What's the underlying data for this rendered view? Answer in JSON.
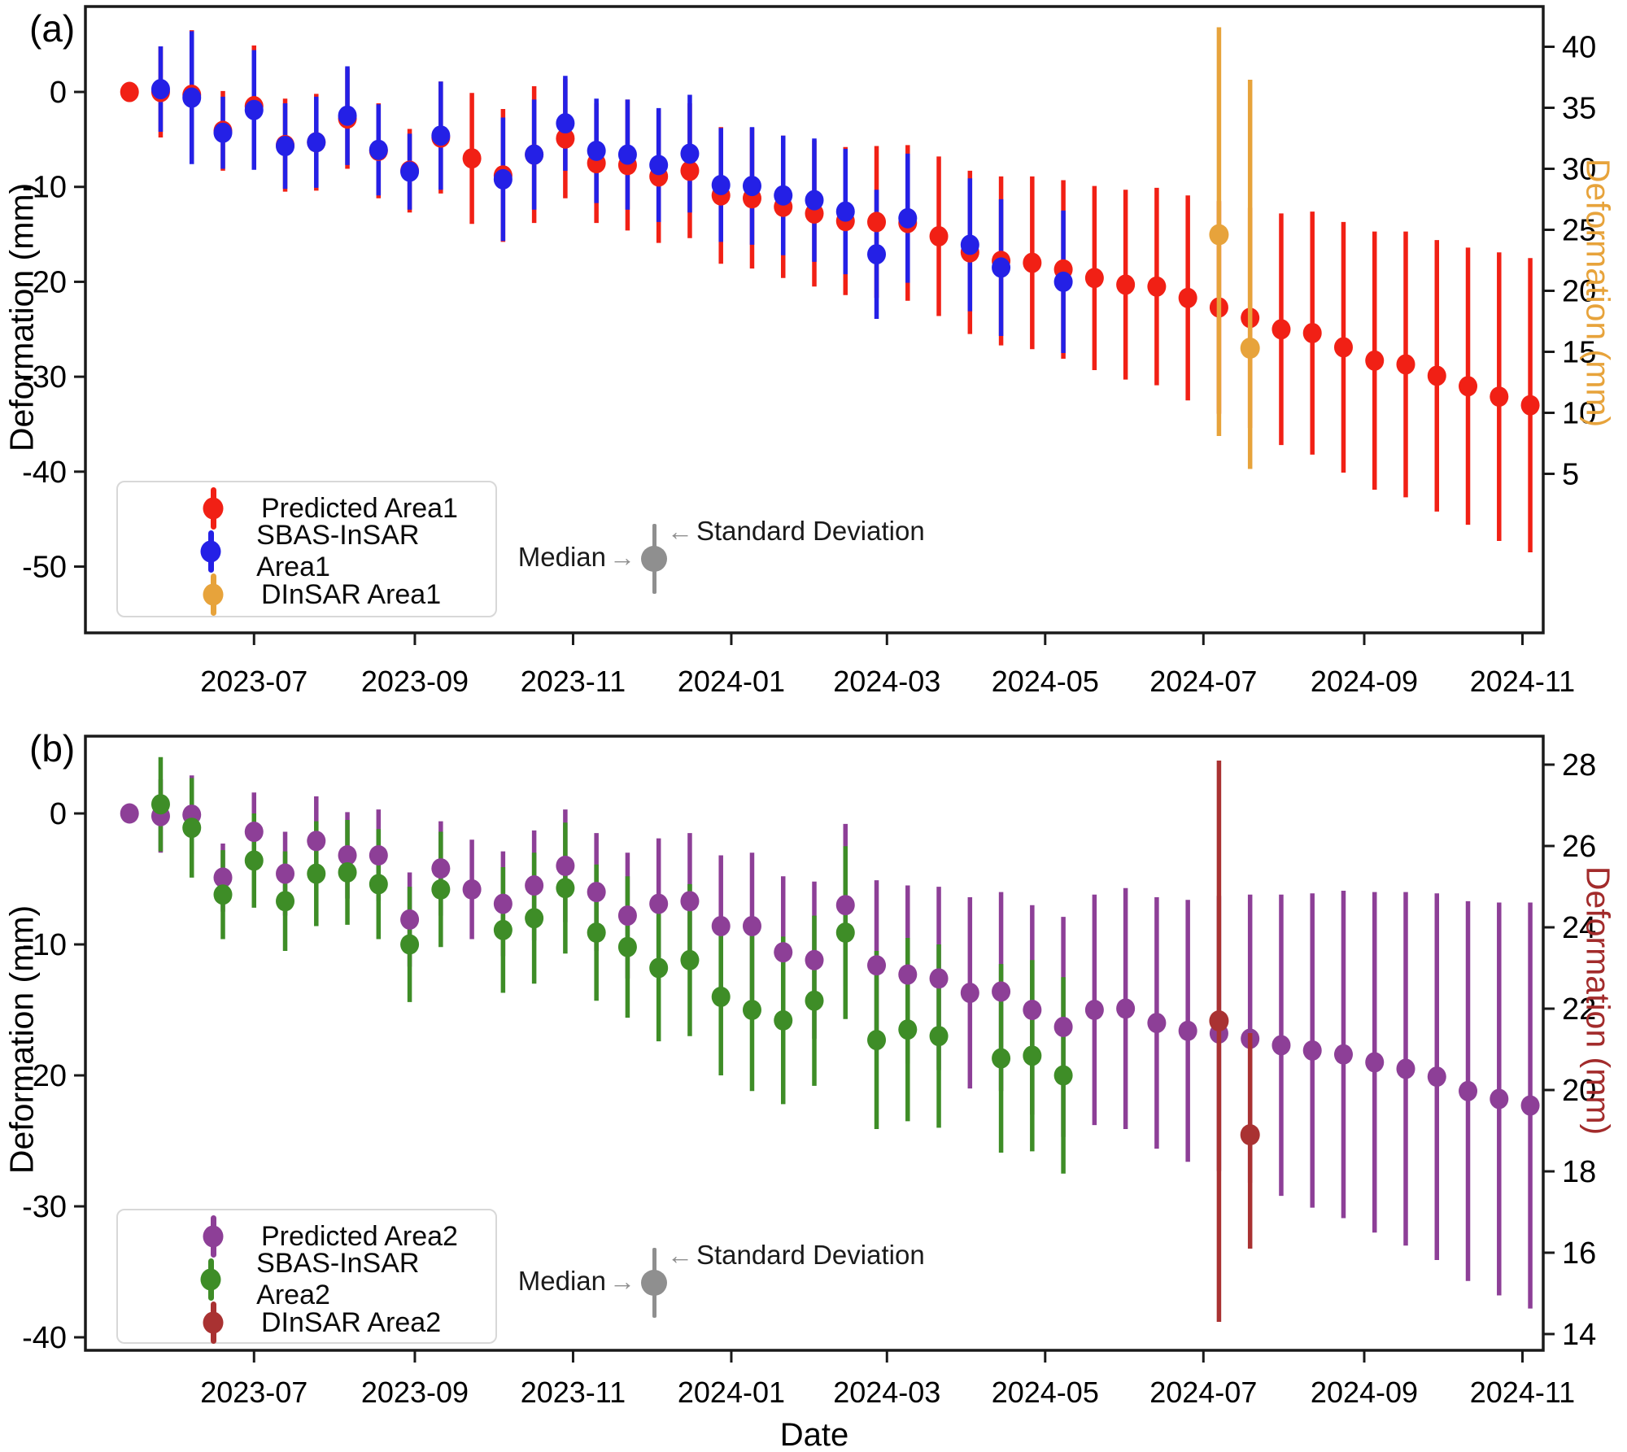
{
  "annotation": {
    "median": "Median",
    "sd": "Standard Deviation",
    "arrow_right": "→",
    "arrow_left": "←"
  },
  "x_axis": {
    "xlabel": "Date",
    "tick_labels": [
      "2023-07",
      "2023-09",
      "2023-11",
      "2024-01",
      "2024-03",
      "2024-05",
      "2024-07",
      "2024-09",
      "2024-11"
    ]
  },
  "panel_a": {
    "letter": "(a)",
    "ylabel_left": "Deformation (mm)",
    "ylabel_right": "Deformation (mm)",
    "ylabel_right_color": "#e7a33b",
    "legend": {
      "items": [
        {
          "label": "Predicted Area1",
          "color": "#f12015"
        },
        {
          "label": "SBAS-InSAR Area1",
          "color": "#2420e6"
        },
        {
          "label": "DInSAR Area1",
          "color": "#e7a33b"
        }
      ]
    }
  },
  "panel_b": {
    "letter": "(b)",
    "ylabel_left": "Deformation (mm)",
    "ylabel_right": "Deformation (mm)",
    "ylabel_right_color": "#a22b2b",
    "legend": {
      "items": [
        {
          "label": "Predicted Area2",
          "color": "#8d3f97"
        },
        {
          "label": "SBAS-InSAR Area2",
          "color": "#3e8d27"
        },
        {
          "label": "DInSAR Area2",
          "color": "#a93232"
        }
      ]
    }
  },
  "chart_data": [
    {
      "panel": "a",
      "type": "scatter",
      "title": "",
      "xlabel": "",
      "ylabel_left": "Deformation (mm)",
      "ylabel_right": "Deformation (mm)",
      "left_ticks": [
        0,
        -10,
        -20,
        -30,
        -40,
        -50
      ],
      "right_ticks": [
        40,
        35,
        30,
        25,
        20,
        15,
        10,
        5
      ],
      "left_ylim": [
        -57,
        9
      ],
      "right_ylim": [
        -8.3,
        43.3
      ],
      "grid": false,
      "legend_position": "lower-left",
      "dates": [
        "2023-05-14",
        "2023-05-26",
        "2023-06-07",
        "2023-06-19",
        "2023-07-01",
        "2023-07-13",
        "2023-07-25",
        "2023-08-06",
        "2023-08-18",
        "2023-08-30",
        "2023-09-11",
        "2023-09-23",
        "2023-10-05",
        "2023-10-17",
        "2023-10-29",
        "2023-11-10",
        "2023-11-22",
        "2023-12-04",
        "2023-12-16",
        "2023-12-28",
        "2024-01-09",
        "2024-01-21",
        "2024-02-02",
        "2024-02-14",
        "2024-02-26",
        "2024-03-09",
        "2024-03-21",
        "2024-04-02",
        "2024-04-14",
        "2024-04-26",
        "2024-05-08",
        "2024-05-20",
        "2024-06-01",
        "2024-06-13",
        "2024-06-25",
        "2024-07-07",
        "2024-07-19",
        "2024-07-31",
        "2024-08-12",
        "2024-08-24",
        "2024-09-05",
        "2024-09-17",
        "2024-09-29",
        "2024-10-11",
        "2024-10-23",
        "2024-11-04"
      ],
      "series": [
        {
          "name": "Predicted Area1",
          "color": "#f12015",
          "axis": "left",
          "values": [
            0,
            0,
            -0.3,
            -4.1,
            -1.5,
            -5.6,
            -5.3,
            -2.8,
            -6.2,
            -8.3,
            -4.8,
            -7.0,
            -8.8,
            -6.6,
            -4.9,
            -7.5,
            -7.7,
            -8.9,
            -8.3,
            -10.9,
            -11.2,
            -12.1,
            -12.8,
            -13.6,
            -13.7,
            -13.8,
            -15.2,
            -16.9,
            -17.8,
            -18.0,
            -18.7,
            -19.6,
            -20.3,
            -20.5,
            -21.7,
            -22.7,
            -23.8,
            -25.0,
            -25.4,
            -26.9,
            -28.3,
            -28.7,
            -29.9,
            -31.0,
            -32.1,
            -33.0
          ],
          "std": [
            0,
            4.8,
            6.8,
            4.2,
            6.4,
            4.9,
            5.1,
            5.3,
            5.0,
            4.4,
            5.9,
            6.9,
            7.0,
            7.2,
            6.3,
            6.3,
            6.9,
            7.0,
            7.1,
            7.2,
            7.4,
            7.5,
            7.7,
            7.8,
            8.0,
            8.2,
            8.4,
            8.6,
            8.9,
            9.1,
            9.4,
            9.7,
            10.0,
            10.4,
            10.8,
            11.2,
            11.6,
            12.2,
            12.8,
            13.2,
            13.6,
            14.0,
            14.3,
            14.6,
            15.2,
            15.5
          ]
        },
        {
          "name": "SBAS-InSAR Area1",
          "color": "#2420e6",
          "axis": "left",
          "values": [
            null,
            0.3,
            -0.6,
            -4.3,
            -1.9,
            -5.7,
            -5.3,
            -2.5,
            -6.1,
            -8.4,
            -4.6,
            null,
            -9.2,
            -6.6,
            -3.3,
            -6.2,
            -6.6,
            -7.7,
            -6.5,
            -9.8,
            -9.9,
            -10.9,
            -11.4,
            -12.6,
            -17.1,
            -13.3,
            null,
            -16.1,
            -18.5,
            null,
            -20.0,
            null,
            null,
            null,
            null,
            null,
            null,
            null,
            null,
            null,
            null,
            null,
            null,
            null,
            null,
            null
          ],
          "std": [
            null,
            4.5,
            7.0,
            3.8,
            6.3,
            4.5,
            4.8,
            5.2,
            4.8,
            4.0,
            5.7,
            null,
            6.5,
            5.8,
            5.0,
            5.5,
            5.8,
            6.0,
            6.2,
            6.0,
            6.2,
            6.3,
            6.5,
            6.6,
            6.8,
            6.8,
            null,
            7.0,
            7.2,
            null,
            7.5,
            null,
            null,
            null,
            null,
            null,
            null,
            null,
            null,
            null,
            null,
            null,
            null,
            null,
            null,
            null
          ]
        },
        {
          "name": "DInSAR Area1",
          "color": "#e7a33b",
          "axis": "right",
          "points": [
            {
              "date": "2024-07-07",
              "index": 35,
              "value": 24.6,
              "err_up": 17.0,
              "err_down": 16.5
            },
            {
              "date": "2024-07-19",
              "index": 36,
              "value": 15.3,
              "err_up": 22.0,
              "err_down": 9.9
            }
          ]
        }
      ]
    },
    {
      "panel": "b",
      "type": "scatter",
      "title": "",
      "xlabel": "Date",
      "ylabel_left": "Deformation (mm)",
      "ylabel_right": "Deformation (mm)",
      "left_ticks": [
        0,
        -10,
        -20,
        -30,
        -40
      ],
      "right_ticks": [
        28,
        26,
        24,
        22,
        20,
        18,
        16,
        14
      ],
      "left_ylim": [
        -41,
        5.9
      ],
      "right_ylim": [
        13.6,
        28.7
      ],
      "grid": false,
      "legend_position": "lower-left",
      "dates": [
        "2023-05-14",
        "2023-05-26",
        "2023-06-07",
        "2023-06-19",
        "2023-07-01",
        "2023-07-13",
        "2023-07-25",
        "2023-08-06",
        "2023-08-18",
        "2023-08-30",
        "2023-09-11",
        "2023-09-23",
        "2023-10-05",
        "2023-10-17",
        "2023-10-29",
        "2023-11-10",
        "2023-11-22",
        "2023-12-04",
        "2023-12-16",
        "2023-12-28",
        "2024-01-09",
        "2024-01-21",
        "2024-02-02",
        "2024-02-14",
        "2024-02-26",
        "2024-03-09",
        "2024-03-21",
        "2024-04-02",
        "2024-04-14",
        "2024-04-26",
        "2024-05-08",
        "2024-05-20",
        "2024-06-01",
        "2024-06-13",
        "2024-06-25",
        "2024-07-07",
        "2024-07-19",
        "2024-07-31",
        "2024-08-12",
        "2024-08-24",
        "2024-09-05",
        "2024-09-17",
        "2024-09-29",
        "2024-10-11",
        "2024-10-23",
        "2024-11-04"
      ],
      "series": [
        {
          "name": "Predicted Area2",
          "color": "#8d3f97",
          "axis": "left",
          "values": [
            0,
            -0.2,
            -0.1,
            -4.9,
            -1.4,
            -4.6,
            -2.1,
            -3.2,
            -3.2,
            -8.1,
            -4.2,
            -5.8,
            -6.9,
            -5.5,
            -4.0,
            -6.0,
            -7.8,
            -6.9,
            -6.7,
            -8.6,
            -8.6,
            -10.6,
            -11.2,
            -7.0,
            -11.6,
            -12.3,
            -12.6,
            -13.7,
            -13.6,
            -15.0,
            -16.3,
            -15.0,
            -14.9,
            -16.0,
            -16.6,
            -16.8,
            -17.2,
            -17.7,
            -18.1,
            -18.4,
            -19.0,
            -19.5,
            -20.1,
            -21.2,
            -21.8,
            -22.3
          ],
          "std": [
            0,
            2.8,
            3.0,
            2.6,
            3.0,
            3.2,
            3.4,
            3.3,
            3.5,
            3.6,
            3.6,
            3.8,
            4.0,
            4.2,
            4.3,
            4.5,
            4.8,
            5.0,
            5.2,
            5.4,
            5.6,
            5.8,
            6.0,
            6.2,
            6.5,
            6.8,
            7.0,
            7.3,
            7.6,
            8.0,
            8.4,
            8.8,
            9.2,
            9.6,
            10.0,
            10.5,
            11.0,
            11.5,
            12.0,
            12.5,
            13.0,
            13.5,
            14.0,
            14.5,
            15.0,
            15.5
          ]
        },
        {
          "name": "SBAS-InSAR Area2",
          "color": "#3e8d27",
          "axis": "left",
          "values": [
            null,
            0.7,
            -1.1,
            -6.2,
            -3.6,
            -6.7,
            -4.6,
            -4.5,
            -5.4,
            -10.0,
            -5.8,
            null,
            -8.9,
            -8.0,
            -5.7,
            -9.1,
            -10.2,
            -11.8,
            -11.2,
            -14.0,
            -15.0,
            -15.8,
            -14.3,
            -9.1,
            -17.3,
            -16.5,
            -17.0,
            null,
            -18.7,
            -18.5,
            -20.0,
            null,
            null,
            null,
            null,
            null,
            null,
            null,
            null,
            null,
            null,
            null,
            null,
            null,
            null,
            null
          ],
          "std": [
            null,
            3.6,
            3.8,
            3.4,
            3.6,
            3.8,
            4.0,
            4.0,
            4.2,
            4.4,
            4.4,
            null,
            4.8,
            5.0,
            5.0,
            5.2,
            5.4,
            5.6,
            5.8,
            6.0,
            6.2,
            6.4,
            6.5,
            6.6,
            6.8,
            7.0,
            7.0,
            null,
            7.2,
            7.3,
            7.5,
            null,
            null,
            null,
            null,
            null,
            null,
            null,
            null,
            null,
            null,
            null,
            null,
            null,
            null,
            null
          ]
        },
        {
          "name": "DInSAR Area2",
          "color": "#a93232",
          "axis": "right",
          "points": [
            {
              "date": "2024-07-07",
              "index": 35,
              "value": 21.7,
              "err_up": 6.4,
              "err_down": 7.4
            },
            {
              "date": "2024-07-19",
              "index": 36,
              "value": 18.9,
              "err_up": 2.5,
              "err_down": 2.8
            }
          ]
        }
      ]
    }
  ],
  "layout_days": {
    "tick_days": [
      65,
      127,
      188,
      249,
      309,
      370,
      431,
      493,
      554
    ],
    "first_point_day": 17,
    "step_days": 12
  }
}
